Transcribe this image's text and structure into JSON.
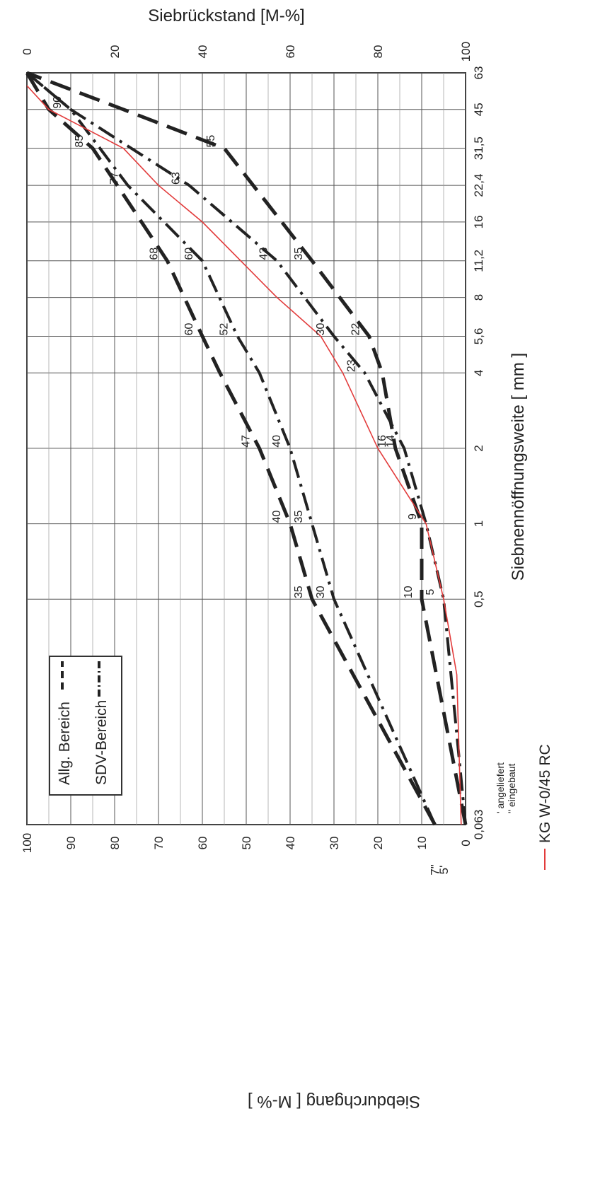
{
  "chart_data": {
    "type": "line",
    "orientation": "rotated-90-clockwise",
    "title": "",
    "x_axis": {
      "label": "Siebnennöffnungsweite [ mm ]",
      "scale": "log",
      "ticks": [
        "0,063",
        "0,5",
        "1",
        "2",
        "4",
        "5,6",
        "8",
        "11,2",
        "16",
        "22,4",
        "31,5",
        "45",
        "63"
      ],
      "tick_values": [
        0.063,
        0.5,
        1,
        2,
        4,
        5.6,
        8,
        11.2,
        16,
        22.4,
        31.5,
        45,
        63
      ]
    },
    "y_axis_left": {
      "label": "Siebdurchgang [ M-% ]",
      "range": [
        0,
        100
      ],
      "ticks": [
        "0",
        "10",
        "20",
        "30",
        "40",
        "50",
        "60",
        "70",
        "80",
        "90",
        "100"
      ],
      "extra_ticks": [
        "7\"",
        "5'"
      ]
    },
    "y_axis_right": {
      "label": "Siebrückstand [M-%]",
      "ticks": [
        "0",
        "20",
        "40",
        "60",
        "80",
        "100"
      ]
    },
    "legend": {
      "placement": "top-left",
      "items": [
        {
          "label": "Allg. Bereich",
          "style": "dashed"
        },
        {
          "label": "SDV-Bereich",
          "style": "dash-dot"
        }
      ]
    },
    "notes": [
      "' angeliefert",
      "\" eingebaut"
    ],
    "sample_label": "KG W-0/45 RC",
    "sample_color": "#e23b3b",
    "series": [
      {
        "name": "Allg. Bereich upper",
        "style": "dashed",
        "x": [
          0.063,
          0.5,
          1,
          2,
          4,
          5.6,
          11.2,
          31.5,
          45,
          63
        ],
        "y": [
          7,
          35,
          40,
          47,
          56,
          60,
          68,
          85,
          95,
          100
        ],
        "labels": [
          null,
          "35",
          "40",
          "47",
          null,
          "60",
          "68",
          "85",
          null,
          null
        ]
      },
      {
        "name": "Allg. Bereich lower",
        "style": "dashed",
        "x": [
          0.063,
          0.5,
          1,
          2,
          4,
          5.6,
          11.2,
          31.5,
          45,
          63
        ],
        "y": [
          0,
          10,
          10,
          16,
          19,
          22,
          35,
          55,
          78,
          100
        ],
        "labels": [
          null,
          "10",
          null,
          "16",
          null,
          "22",
          "35",
          "55",
          null,
          null
        ]
      },
      {
        "name": "SDV-Bereich upper",
        "style": "dash-dot",
        "x": [
          0.063,
          0.5,
          1,
          2,
          4,
          5.6,
          11.2,
          22.4,
          45,
          63
        ],
        "y": [
          7,
          30,
          35,
          40,
          47,
          52,
          60,
          77,
          90,
          100
        ],
        "labels": [
          null,
          "30",
          "35",
          "40",
          null,
          "52",
          "60",
          "77",
          "90",
          null
        ]
      },
      {
        "name": "SDV-Bereich lower",
        "style": "dash-dot",
        "x": [
          0.063,
          0.5,
          1,
          2,
          4,
          5.6,
          11.2,
          22.4,
          45,
          63
        ],
        "y": [
          0,
          5,
          9,
          14,
          23,
          30,
          43,
          63,
          90,
          100
        ],
        "labels": [
          null,
          "5",
          "9",
          "14",
          "23",
          "30",
          "43",
          "63",
          null,
          null
        ]
      },
      {
        "name": "KG W-0/45 RC",
        "style": "solid",
        "x": [
          0.063,
          0.25,
          0.5,
          1,
          2,
          4,
          5.6,
          8,
          16,
          22.4,
          31.5,
          45,
          56
        ],
        "y": [
          1,
          2,
          5,
          9,
          20,
          28,
          33,
          43,
          60,
          70,
          78,
          95,
          100
        ]
      }
    ]
  }
}
